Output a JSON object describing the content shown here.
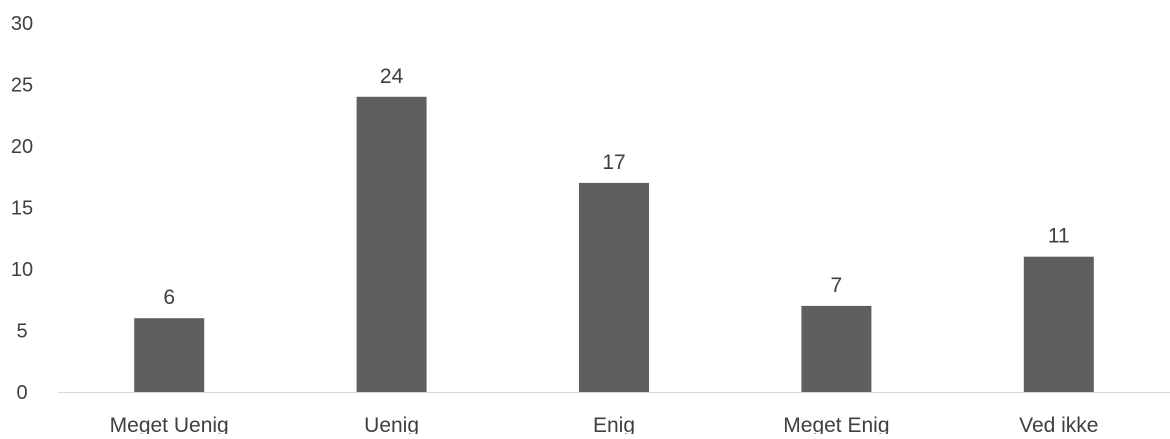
{
  "chart_data": {
    "type": "bar",
    "title": "",
    "xlabel": "",
    "ylabel": "",
    "categories": [
      "Meget Uenig",
      "Uenig",
      "Enig",
      "Meget Enig",
      "Ved ikke"
    ],
    "values": [
      6,
      24,
      17,
      7,
      11
    ],
    "ylim": [
      0,
      30
    ],
    "yticks": [
      0,
      5,
      10,
      15,
      20,
      25,
      30
    ],
    "grid": false,
    "legend": "none",
    "data_labels": true,
    "colors": {
      "bar": "#5f5f5f",
      "axis": "#d9d9d9",
      "text": "#404040"
    }
  }
}
